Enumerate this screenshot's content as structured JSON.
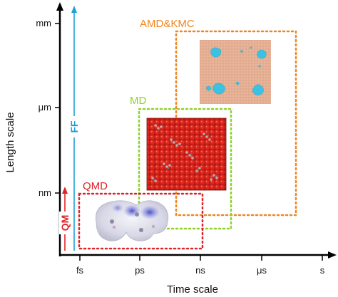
{
  "axes": {
    "x_title": "Time scale",
    "y_title": "Length scale",
    "x_ticks": [
      "fs",
      "ps",
      "ns",
      "μs",
      "s"
    ],
    "y_ticks": [
      "mm",
      "μm",
      "nm"
    ]
  },
  "regions": {
    "amd": {
      "label": "AMD&KMC",
      "color": "#f0861e"
    },
    "md": {
      "label": "MD",
      "color": "#8ed12a"
    },
    "qmd": {
      "label": "QMD",
      "color": "#d9252b"
    }
  },
  "methods": {
    "ff": {
      "label": "FF",
      "color": "#1f9fd6"
    },
    "qm": {
      "label": "QM",
      "color": "#e02424"
    }
  }
}
